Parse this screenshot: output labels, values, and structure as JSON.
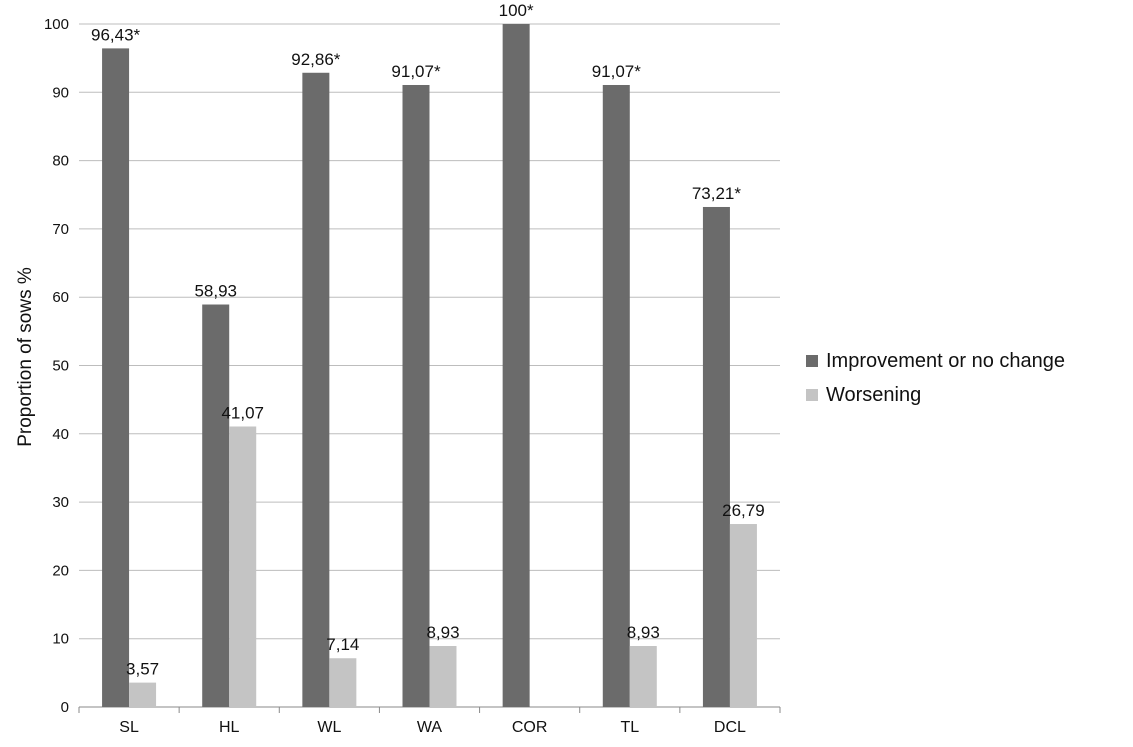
{
  "chart_data": {
    "type": "bar",
    "categories": [
      "SL",
      "HL",
      "WL",
      "WA",
      "COR",
      "TL",
      "DCL"
    ],
    "series": [
      {
        "name": "Improvement or no change",
        "color": "#6b6b6b",
        "values": [
          96.43,
          58.93,
          92.86,
          91.07,
          100,
          91.07,
          73.21
        ],
        "labels": [
          "96,43*",
          "58,93",
          "92,86*",
          "91,07*",
          "100*",
          "91,07*",
          "73,21*"
        ]
      },
      {
        "name": "Worsening",
        "color": "#c4c4c4",
        "values": [
          3.57,
          41.07,
          7.14,
          8.93,
          null,
          8.93,
          26.79
        ],
        "labels": [
          "3,57",
          "41,07",
          "7,14",
          "8,93",
          "",
          "8,93",
          "26,79"
        ]
      }
    ],
    "xlabel": "",
    "ylabel": "Proportion of sows %",
    "ylim": [
      0,
      100
    ],
    "yticks": [
      "0",
      "10",
      "20",
      "30",
      "40",
      "50",
      "60",
      "70",
      "80",
      "90",
      "100"
    ],
    "grid": true,
    "legend_position": "right"
  }
}
